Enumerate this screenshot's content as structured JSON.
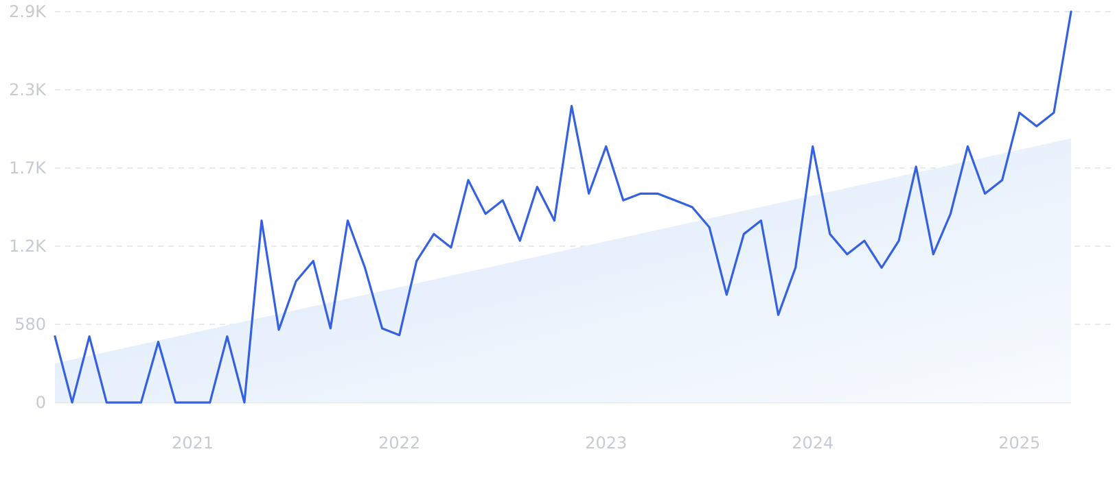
{
  "chart_data": {
    "type": "line",
    "title": "",
    "xlabel": "",
    "ylabel": "",
    "x_tick_labels": [
      "2021",
      "2022",
      "2023",
      "2024",
      "2025"
    ],
    "y_tick_labels": [
      "0",
      "580",
      "1.2K",
      "1.7K",
      "2.3K",
      "2.9K"
    ],
    "y_tick_values": [
      0,
      580,
      1160,
      1740,
      2320,
      2900
    ],
    "ylim": [
      0,
      2900
    ],
    "grid": true,
    "legend": "none",
    "colors": {
      "line": "#3560e0",
      "trend_fill": "#dce9f9",
      "grid": "#dbe5ec",
      "tick_text": "#c7cad3"
    },
    "x": [
      "2020-05",
      "2020-06",
      "2020-07",
      "2020-08",
      "2020-09",
      "2020-10",
      "2020-11",
      "2020-12",
      "2021-01",
      "2021-02",
      "2021-03",
      "2021-04",
      "2021-05",
      "2021-06",
      "2021-07",
      "2021-08",
      "2021-09",
      "2021-10",
      "2021-11",
      "2021-12",
      "2022-01",
      "2022-02",
      "2022-03",
      "2022-04",
      "2022-05",
      "2022-06",
      "2022-07",
      "2022-08",
      "2022-09",
      "2022-10",
      "2022-11",
      "2022-12",
      "2023-01",
      "2023-02",
      "2023-03",
      "2023-04",
      "2023-05",
      "2023-06",
      "2023-07",
      "2023-08",
      "2023-09",
      "2023-10",
      "2023-11",
      "2023-12",
      "2024-01",
      "2024-02",
      "2024-03",
      "2024-04",
      "2024-05",
      "2024-06",
      "2024-07",
      "2024-08",
      "2024-09",
      "2024-10",
      "2024-11",
      "2024-12",
      "2025-01",
      "2025-02",
      "2025-03",
      "2025-04"
    ],
    "series": [
      {
        "values": [
          490,
          0,
          490,
          0,
          0,
          0,
          450,
          0,
          0,
          0,
          490,
          0,
          1350,
          540,
          900,
          1050,
          550,
          1350,
          1000,
          550,
          500,
          1050,
          1250,
          1150,
          1650,
          1400,
          1500,
          1200,
          1600,
          1350,
          2200,
          1550,
          1900,
          1500,
          1550,
          1550,
          1500,
          1450,
          1300,
          800,
          1250,
          1350,
          650,
          1000,
          1900,
          1250,
          1100,
          1200,
          1000,
          1200,
          1750,
          1100,
          1400,
          1900,
          1550,
          1650,
          2150,
          2050,
          2150,
          2900
        ]
      }
    ],
    "trend": {
      "values": [
        290,
        1960
      ]
    }
  }
}
